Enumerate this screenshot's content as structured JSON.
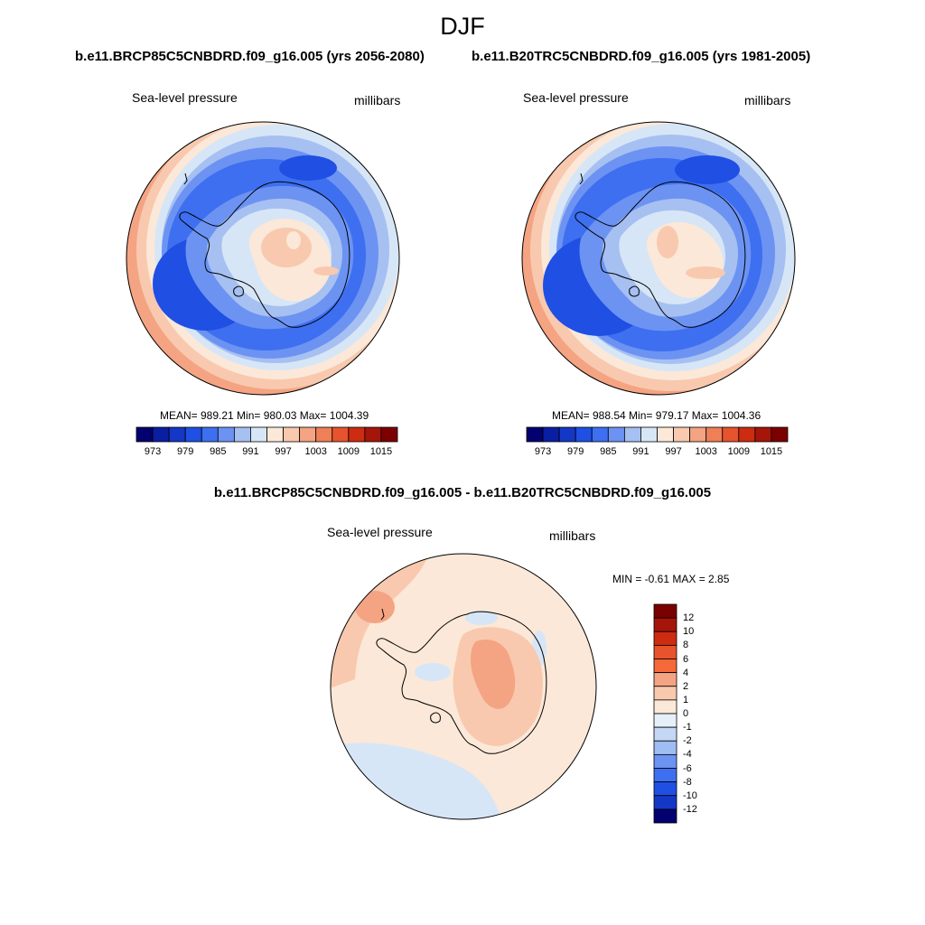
{
  "figure": {
    "season": "DJF",
    "case_a": "b.e11.BRCP85C5CNBDRD.f09_g16.005 (yrs 2056-2080)",
    "case_b": "b.e11.B20TRC5CNBDRD.f09_g16.005 (yrs 1981-2005)",
    "diff_title": "b.e11.BRCP85C5CNBDRD.f09_g16.005 - b.e11.B20TRC5CNBDRD.f09_g16.005"
  },
  "panels": {
    "left": {
      "variable": "Sea-level pressure",
      "units": "millibars",
      "stats": "MEAN= 989.21  Min= 980.03  Max= 1004.39"
    },
    "right": {
      "variable": "Sea-level pressure",
      "units": "millibars",
      "stats": "MEAN= 988.54  Min= 979.17  Max= 1004.36"
    },
    "diff": {
      "variable": "Sea-level pressure",
      "units": "millibars",
      "stats": "MIN =  -0.61 MAX =   2.85"
    }
  },
  "chart_data": [
    {
      "type": "heatmap",
      "title": "Sea-level pressure",
      "subtitle": "b.e11.BRCP85C5CNBDRD.f09_g16.005 (yrs 2056-2080)",
      "units": "millibars",
      "projection": "south polar stereographic",
      "mean": 989.21,
      "min": 980.03,
      "max": 1004.39,
      "colorbar_levels": [
        970,
        973,
        976,
        979,
        982,
        985,
        988,
        991,
        994,
        997,
        1000,
        1003,
        1006,
        1009,
        1012,
        1015
      ],
      "colorbar_tick_labels": [
        "973",
        "979",
        "985",
        "991",
        "997",
        "1003",
        "1009",
        "1015"
      ],
      "colors": [
        "#03016f",
        "#0a1ea2",
        "#1537c6",
        "#1f4fe3",
        "#3d6ff0",
        "#6c93f2",
        "#a7c0f2",
        "#d7e6f6",
        "#fbe8d8",
        "#f8c9ae",
        "#f4a482",
        "#ef7f57",
        "#e6532d",
        "#cd2c11",
        "#a51509",
        "#7b0000"
      ]
    },
    {
      "type": "heatmap",
      "title": "Sea-level pressure",
      "subtitle": "b.e11.B20TRC5CNBDRD.f09_g16.005 (yrs 1981-2005)",
      "units": "millibars",
      "projection": "south polar stereographic",
      "mean": 988.54,
      "min": 979.17,
      "max": 1004.36,
      "colorbar_levels": [
        970,
        973,
        976,
        979,
        982,
        985,
        988,
        991,
        994,
        997,
        1000,
        1003,
        1006,
        1009,
        1012,
        1015
      ],
      "colorbar_tick_labels": [
        "973",
        "979",
        "985",
        "991",
        "997",
        "1003",
        "1009",
        "1015"
      ],
      "colors": [
        "#03016f",
        "#0a1ea2",
        "#1537c6",
        "#1f4fe3",
        "#3d6ff0",
        "#6c93f2",
        "#a7c0f2",
        "#d7e6f6",
        "#fbe8d8",
        "#f8c9ae",
        "#f4a482",
        "#ef7f57",
        "#e6532d",
        "#cd2c11",
        "#a51509",
        "#7b0000"
      ]
    },
    {
      "type": "heatmap",
      "title": "Sea-level pressure",
      "subtitle": "b.e11.BRCP85C5CNBDRD.f09_g16.005 - b.e11.B20TRC5CNBDRD.f09_g16.005",
      "units": "millibars",
      "projection": "south polar stereographic",
      "min": -0.61,
      "max": 2.85,
      "colorbar_levels": [
        12,
        10,
        8,
        6,
        4,
        2,
        1,
        0,
        -1,
        -2,
        -4,
        -6,
        -8,
        -10,
        -12
      ],
      "colorbar_tick_labels": [
        "12",
        "10",
        "8",
        "6",
        "4",
        "2",
        "1",
        "0",
        "-1",
        "-2",
        "-4",
        "-6",
        "-8",
        "-10",
        "-12"
      ],
      "colors": [
        "#7b0000",
        "#a51509",
        "#cd2c11",
        "#e6532d",
        "#f4683a",
        "#f4a482",
        "#f8c9ae",
        "#fbe8d8",
        "#e6f0fa",
        "#c4d8f5",
        "#9ebdf2",
        "#6c93f2",
        "#3d6ff0",
        "#1f4fe3",
        "#1537c6",
        "#03016f"
      ]
    }
  ]
}
